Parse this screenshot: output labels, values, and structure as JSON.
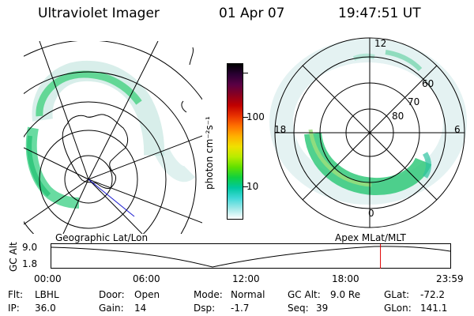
{
  "header": {
    "instrument": "Ultraviolet Imager",
    "date": "01 Apr 07",
    "time": "19:47:51 UT"
  },
  "geo_panel": {
    "label": "Geographic Lat/Lon"
  },
  "mag_panel": {
    "label": "Apex MLat/MLT",
    "mlt_labels": [
      "12",
      "18",
      "6",
      "0"
    ],
    "lat_labels": [
      "60",
      "70",
      "80"
    ]
  },
  "colorbar": {
    "unit_label": "photon cm⁻²s⁻¹",
    "tick_labels": [
      "100",
      "10"
    ],
    "colors": [
      "#000000",
      "#2a0033",
      "#5a0044",
      "#8a0020",
      "#c00000",
      "#e83000",
      "#ff7000",
      "#ffb000",
      "#f0e000",
      "#b8ec00",
      "#60e000",
      "#10d040",
      "#00c8a0",
      "#40d8d8",
      "#a0e8e8",
      "#ffffff"
    ]
  },
  "altitude_strip": {
    "axis_label": "GC Alt",
    "y_ticks": [
      "9.0",
      "1.8"
    ],
    "x_ticks": [
      "00:00",
      "06:00",
      "12:00",
      "18:00",
      "23:59"
    ],
    "marker_fraction": 0.8249,
    "marker_color": "#e00000"
  },
  "status": {
    "flt_label": "Flt:",
    "flt_value": "LBHL",
    "ip_label": "IP:",
    "ip_value": "36.0",
    "door_label": "Door:",
    "door_value": "Open",
    "gain_label": "Gain:",
    "gain_value": "14",
    "mode_label": "Mode:",
    "mode_value": "Normal",
    "dsp_label": "Dsp:",
    "dsp_value": "-1.7",
    "gcalt_label": "GC Alt:",
    "gcalt_value": "9.0 Re",
    "seq_label": "Seq:",
    "seq_value": "39",
    "glat_label": "GLat:",
    "glat_value": "-72.2",
    "glon_label": "GLon:",
    "glon_value": "141.1"
  }
}
